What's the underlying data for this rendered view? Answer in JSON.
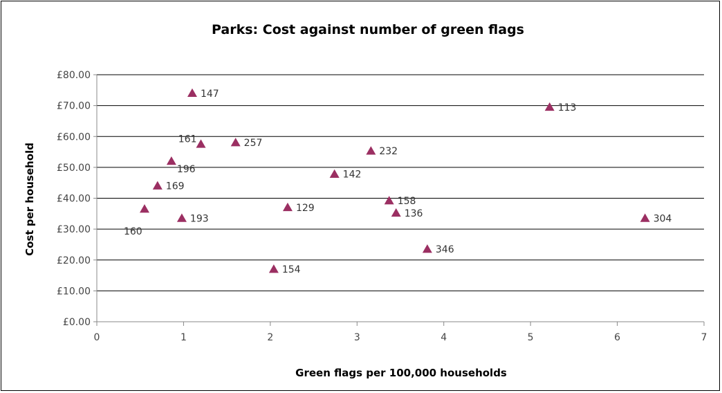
{
  "chart_data": {
    "type": "scatter",
    "title": "Parks: Cost against number of green flags",
    "xlabel": "Green flags per 100,000 households",
    "ylabel": "Cost per household",
    "xlim": [
      0,
      7
    ],
    "ylim": [
      0,
      80
    ],
    "x_ticks": [
      "0",
      "1",
      "2",
      "3",
      "4",
      "5",
      "6",
      "7"
    ],
    "y_ticks": [
      "£0.00",
      "£10.00",
      "£20.00",
      "£30.00",
      "£40.00",
      "£50.00",
      "£60.00",
      "£70.00",
      "£80.00"
    ],
    "grid": true,
    "marker": "triangle",
    "marker_color": "#9B2F62",
    "points": [
      {
        "label": "147",
        "x": 1.1,
        "y": 74.0,
        "pos": "right"
      },
      {
        "label": "113",
        "x": 5.22,
        "y": 69.5,
        "pos": "right"
      },
      {
        "label": "161",
        "x": 1.2,
        "y": 57.5,
        "pos": "left-top"
      },
      {
        "label": "257",
        "x": 1.6,
        "y": 58.0,
        "pos": "right"
      },
      {
        "label": "232",
        "x": 3.16,
        "y": 55.3,
        "pos": "right"
      },
      {
        "label": "196",
        "x": 0.86,
        "y": 52.0,
        "pos": "below-right"
      },
      {
        "label": "142",
        "x": 2.74,
        "y": 47.8,
        "pos": "right"
      },
      {
        "label": "169",
        "x": 0.7,
        "y": 44.0,
        "pos": "right"
      },
      {
        "label": "158",
        "x": 3.37,
        "y": 39.2,
        "pos": "right"
      },
      {
        "label": "129",
        "x": 2.2,
        "y": 37.0,
        "pos": "right"
      },
      {
        "label": "160",
        "x": 0.55,
        "y": 36.5,
        "pos": "below-left"
      },
      {
        "label": "136",
        "x": 3.45,
        "y": 35.2,
        "pos": "right"
      },
      {
        "label": "193",
        "x": 0.98,
        "y": 33.5,
        "pos": "right"
      },
      {
        "label": "304",
        "x": 6.32,
        "y": 33.5,
        "pos": "right"
      },
      {
        "label": "346",
        "x": 3.81,
        "y": 23.5,
        "pos": "right"
      },
      {
        "label": "154",
        "x": 2.04,
        "y": 17.0,
        "pos": "right"
      }
    ]
  }
}
